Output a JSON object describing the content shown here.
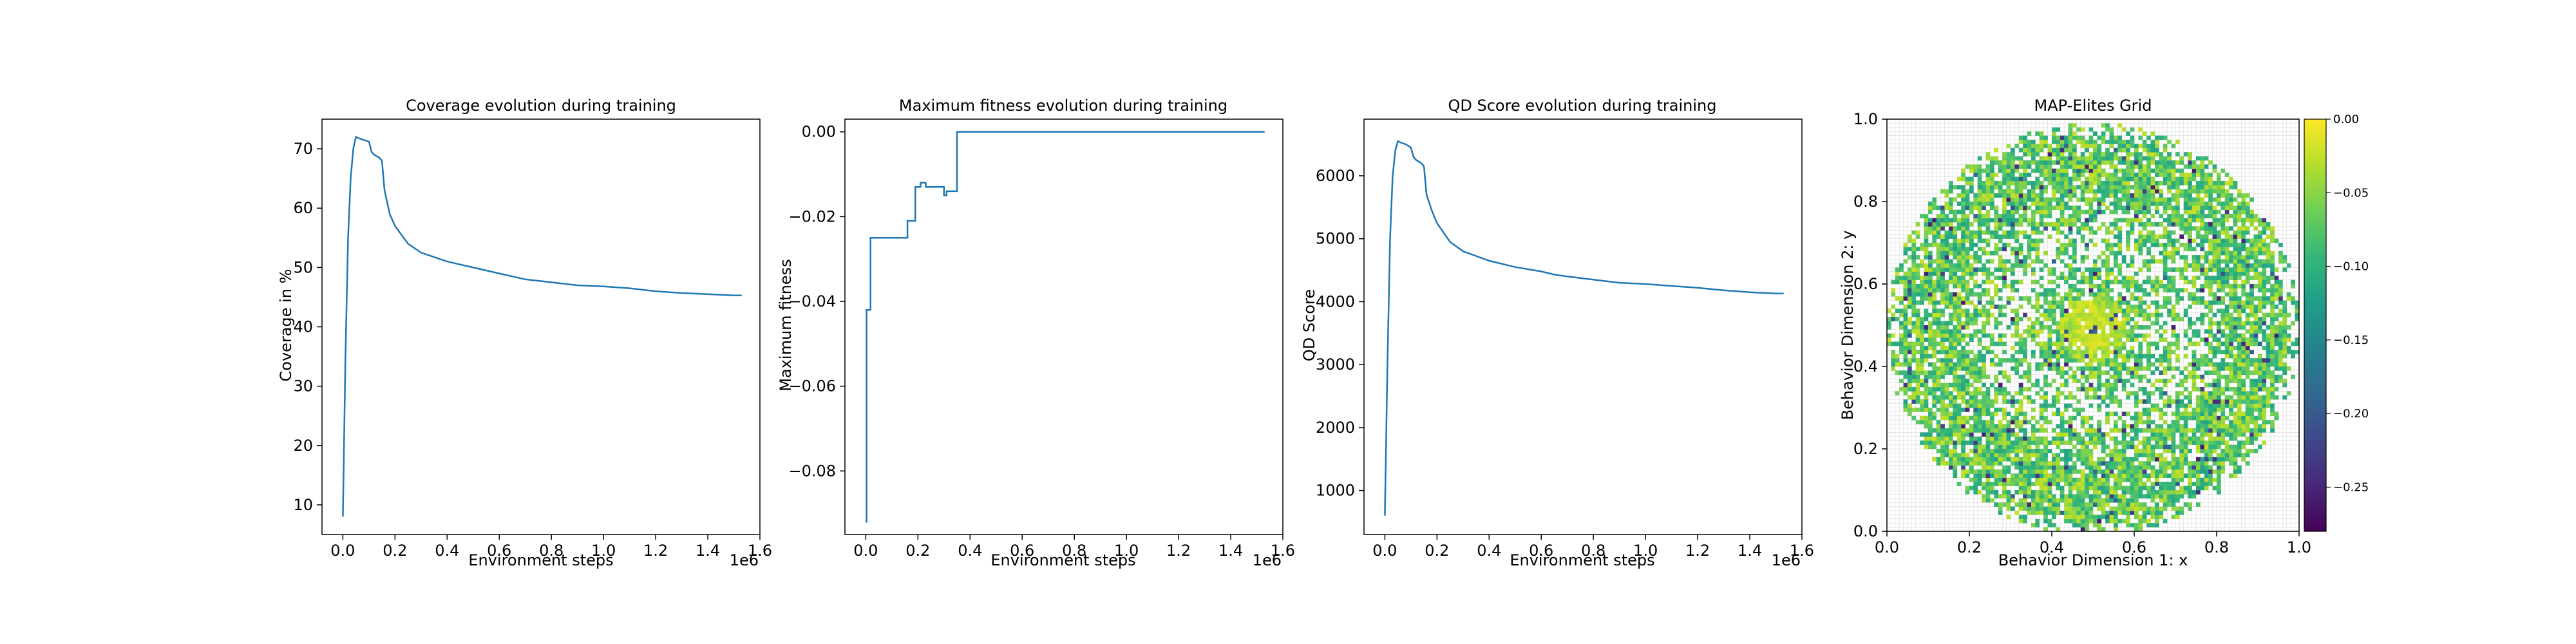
{
  "chart_data": [
    {
      "type": "line",
      "title": "Coverage evolution during training",
      "xlabel": "Environment steps",
      "ylabel": "Coverage in %",
      "x_offset_text": "1e6",
      "xlim": [
        -0.08,
        1.6
      ],
      "ylim": [
        5,
        75
      ],
      "xticks": [
        0.0,
        0.2,
        0.4,
        0.6,
        0.8,
        1.0,
        1.2,
        1.4,
        1.6
      ],
      "xtick_labels": [
        "0.0",
        "0.2",
        "0.4",
        "0.6",
        "0.8",
        "1.0",
        "1.2",
        "1.4",
        "1.6"
      ],
      "yticks": [
        10,
        20,
        30,
        40,
        50,
        60,
        70
      ],
      "ytick_labels": [
        "10",
        "20",
        "30",
        "40",
        "50",
        "60",
        "70"
      ],
      "grid": false,
      "series": [
        {
          "color": "#1f77b4",
          "x": [
            0.0,
            0.01,
            0.02,
            0.03,
            0.04,
            0.05,
            0.06,
            0.08,
            0.1,
            0.11,
            0.12,
            0.14,
            0.15,
            0.16,
            0.18,
            0.2,
            0.25,
            0.3,
            0.4,
            0.5,
            0.6,
            0.65,
            0.7,
            0.8,
            0.9,
            1.0,
            1.1,
            1.2,
            1.3,
            1.4,
            1.5,
            1.53
          ],
          "y": [
            8,
            35,
            55,
            65,
            70,
            72,
            71.8,
            71.5,
            71.2,
            69.5,
            69,
            68.5,
            68,
            63,
            59,
            57,
            54,
            52.5,
            51,
            50,
            49,
            48.5,
            48,
            47.5,
            47,
            46.8,
            46.5,
            46,
            45.7,
            45.5,
            45.3,
            45.3
          ]
        }
      ]
    },
    {
      "type": "line",
      "title": "Maximum fitness evolution during training",
      "xlabel": "Environment steps",
      "ylabel": "Maximum fitness",
      "x_offset_text": "1e6",
      "xlim": [
        -0.08,
        1.6
      ],
      "ylim": [
        -0.095,
        0.003
      ],
      "xticks": [
        0.0,
        0.2,
        0.4,
        0.6,
        0.8,
        1.0,
        1.2,
        1.4,
        1.6
      ],
      "xtick_labels": [
        "0.0",
        "0.2",
        "0.4",
        "0.6",
        "0.8",
        "1.0",
        "1.2",
        "1.4",
        "1.6"
      ],
      "yticks": [
        -0.08,
        -0.06,
        -0.04,
        -0.02,
        0.0
      ],
      "ytick_labels": [
        "−0.08",
        "−0.06",
        "−0.04",
        "−0.02",
        "0.00"
      ],
      "grid": false,
      "series": [
        {
          "color": "#1f77b4",
          "step": true,
          "x": [
            0.0,
            0.003,
            0.018,
            0.16,
            0.19,
            0.21,
            0.23,
            0.25,
            0.3,
            0.31,
            0.33,
            0.35,
            1.53
          ],
          "y": [
            -0.092,
            -0.042,
            -0.025,
            -0.021,
            -0.013,
            -0.012,
            -0.013,
            -0.013,
            -0.015,
            -0.014,
            -0.014,
            0.0,
            0.0
          ]
        }
      ]
    },
    {
      "type": "line",
      "title": "QD Score evolution during training",
      "xlabel": "Environment steps",
      "ylabel": "QD Score",
      "x_offset_text": "1e6",
      "xlim": [
        -0.08,
        1.6
      ],
      "ylim": [
        300,
        6900
      ],
      "xticks": [
        0.0,
        0.2,
        0.4,
        0.6,
        0.8,
        1.0,
        1.2,
        1.4,
        1.6
      ],
      "xtick_labels": [
        "0.0",
        "0.2",
        "0.4",
        "0.6",
        "0.8",
        "1.0",
        "1.2",
        "1.4",
        "1.6"
      ],
      "yticks": [
        1000,
        2000,
        3000,
        4000,
        5000,
        6000
      ],
      "ytick_labels": [
        "1000",
        "2000",
        "3000",
        "4000",
        "5000",
        "6000"
      ],
      "grid": false,
      "series": [
        {
          "color": "#1f77b4",
          "x": [
            0.0,
            0.01,
            0.02,
            0.03,
            0.04,
            0.05,
            0.06,
            0.08,
            0.1,
            0.11,
            0.12,
            0.14,
            0.15,
            0.16,
            0.18,
            0.2,
            0.25,
            0.3,
            0.4,
            0.5,
            0.6,
            0.65,
            0.7,
            0.8,
            0.9,
            1.0,
            1.1,
            1.2,
            1.3,
            1.4,
            1.5,
            1.53
          ],
          "y": [
            600,
            3000,
            5000,
            6000,
            6400,
            6550,
            6530,
            6500,
            6450,
            6300,
            6250,
            6200,
            6150,
            5700,
            5450,
            5250,
            4950,
            4800,
            4650,
            4550,
            4480,
            4430,
            4400,
            4350,
            4300,
            4280,
            4250,
            4220,
            4180,
            4150,
            4130,
            4130
          ]
        }
      ]
    },
    {
      "type": "heatmap",
      "title": "MAP-Elites Grid",
      "xlabel": "Behavior Dimension 1: x",
      "ylabel": "Behavior Dimension 2: y",
      "xlim": [
        0.0,
        1.0
      ],
      "ylim": [
        0.0,
        1.0
      ],
      "xticks": [
        0.0,
        0.2,
        0.4,
        0.6,
        0.8,
        1.0
      ],
      "xtick_labels": [
        "0.0",
        "0.2",
        "0.4",
        "0.6",
        "0.8",
        "1.0"
      ],
      "yticks": [
        0.0,
        0.2,
        0.4,
        0.6,
        0.8,
        1.0
      ],
      "ytick_labels": [
        "0.0",
        "0.2",
        "0.4",
        "0.6",
        "0.8",
        "1.0"
      ],
      "grid_cells": 100,
      "colormap": "viridis",
      "colormap_stops": [
        "#440154",
        "#482878",
        "#3e4989",
        "#31688e",
        "#26828e",
        "#1f9e89",
        "#35b779",
        "#6ece58",
        "#b5de2b",
        "#fde725"
      ],
      "color_range": [
        -0.28,
        0.0
      ],
      "colorbar_ticks": [
        0.0,
        -0.05,
        -0.1,
        -0.15,
        -0.2,
        -0.25
      ],
      "colorbar_tick_labels": [
        "0.00",
        "−0.05",
        "−0.10",
        "−0.15",
        "−0.20",
        "−0.25"
      ],
      "empty_cell_color": "#ffffff",
      "gridline_color": "#d9d9d9",
      "distribution": {
        "center": [
          0.5,
          0.49
        ],
        "radius": 0.49,
        "value_mean": -0.07,
        "value_spread": 0.06,
        "center_value": -0.01
      }
    }
  ]
}
